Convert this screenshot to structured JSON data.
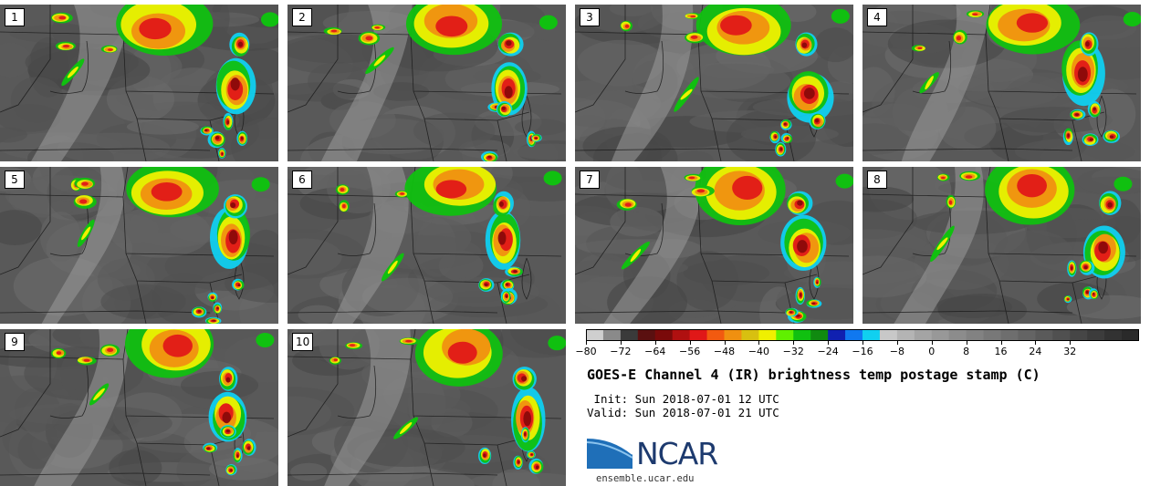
{
  "panels": [
    {
      "label": "1"
    },
    {
      "label": "2"
    },
    {
      "label": "3"
    },
    {
      "label": "4"
    },
    {
      "label": "5"
    },
    {
      "label": "6"
    },
    {
      "label": "7"
    },
    {
      "label": "8"
    },
    {
      "label": "9"
    },
    {
      "label": "10"
    }
  ],
  "colorbar": {
    "colors": [
      "#cfcfcf",
      "#8a8a8a",
      "#3a3a3a",
      "#5a1010",
      "#7a0a0a",
      "#b01010",
      "#e01818",
      "#f25a10",
      "#f09010",
      "#d8c010",
      "#f0f000",
      "#60f000",
      "#10c010",
      "#108a10",
      "#1020b0",
      "#1078f0",
      "#10d0f0",
      "#c8c8c8",
      "#b4b4b4",
      "#a4a4a4",
      "#989898",
      "#8c8c8c",
      "#828282",
      "#787878",
      "#6e6e6e",
      "#646464",
      "#5a5a5a",
      "#505050",
      "#464646",
      "#3c3c3c",
      "#323232",
      "#2a2a2a"
    ],
    "ticks": [
      "−80",
      "−72",
      "−64",
      "−56",
      "−48",
      "−40",
      "−32",
      "−24",
      "−16",
      "−8",
      "0",
      "8",
      "16",
      "24",
      "32"
    ]
  },
  "title": "GOES-E Channel 4 (IR) brightness temp postage stamp (C)",
  "init": " Init: Sun 2018-07-01 12 UTC",
  "valid": "Valid: Sun 2018-07-01 21 UTC",
  "logo_text": "NCAR",
  "url": "ensemble.ucar.edu"
}
